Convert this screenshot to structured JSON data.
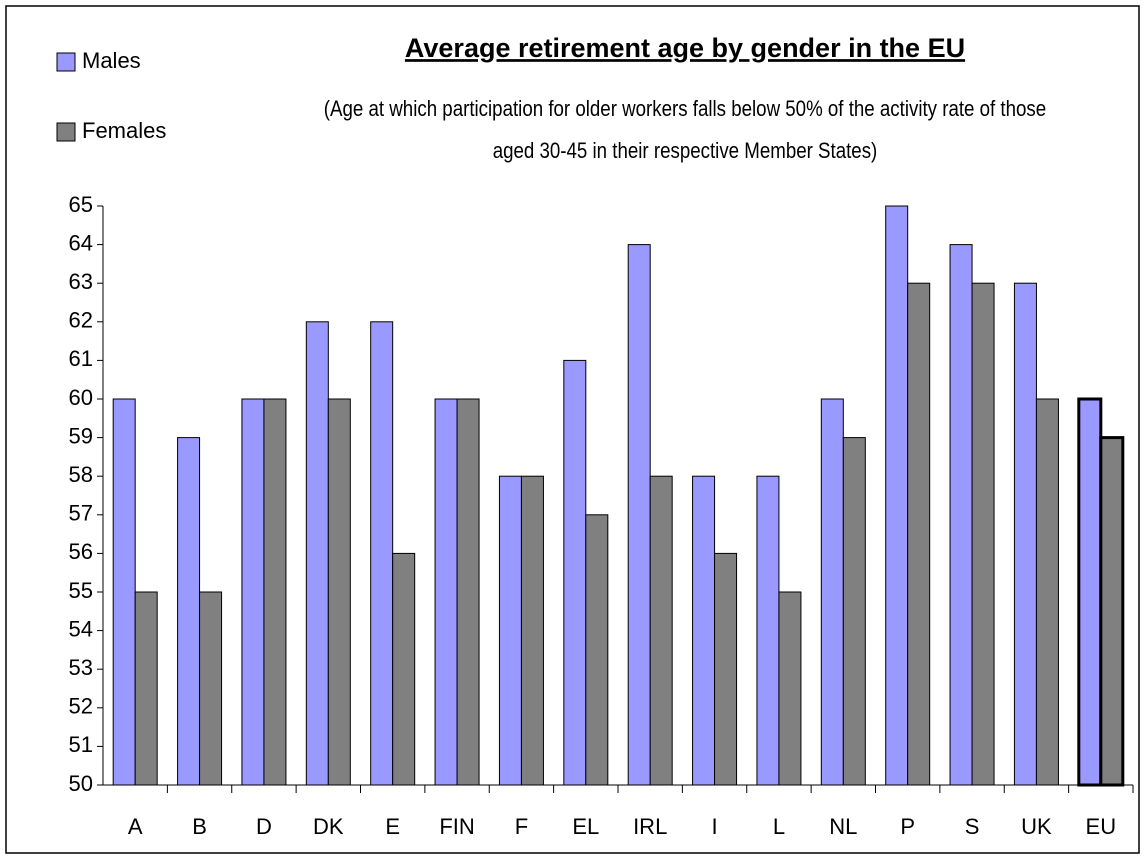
{
  "chart_data": {
    "type": "bar",
    "title": "Average retirement age by gender in the EU",
    "subtitle": "(Age at which participation for older workers falls below 50% of the activity rate of those aged 30-45 in their respective Member States)",
    "categories": [
      "A",
      "B",
      "D",
      "DK",
      "E",
      "FIN",
      "F",
      "EL",
      "IRL",
      "I",
      "L",
      "NL",
      "P",
      "S",
      "UK",
      "EU"
    ],
    "series": [
      {
        "name": "Males",
        "color": "#9999ff",
        "values": [
          60,
          59,
          60,
          62,
          62,
          60,
          58,
          61,
          64,
          58,
          58,
          60,
          65,
          64,
          63,
          60
        ]
      },
      {
        "name": "Females",
        "color": "#808080",
        "values": [
          55,
          55,
          60,
          60,
          56,
          60,
          58,
          57,
          58,
          56,
          55,
          59,
          63,
          63,
          60,
          59
        ]
      }
    ],
    "ylim": [
      50,
      65
    ],
    "yticks": [
      50,
      51,
      52,
      53,
      54,
      55,
      56,
      57,
      58,
      59,
      60,
      61,
      62,
      63,
      64,
      65
    ],
    "grid": false,
    "legend": "top-left"
  }
}
